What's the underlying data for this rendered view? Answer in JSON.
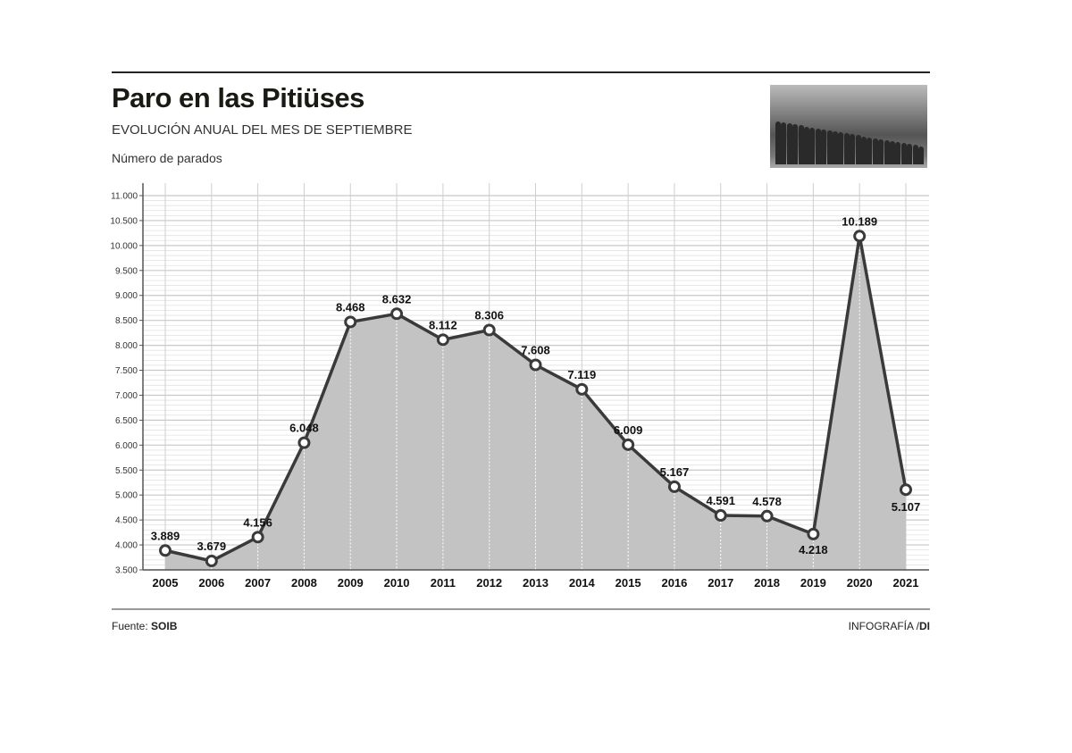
{
  "header": {
    "title": "Paro en las Pitiüses",
    "subtitle": "EVOLUCIÓN ANUAL DEL MES DE SEPTIEMBRE",
    "unit_label": "Número de parados"
  },
  "footer": {
    "source_prefix": "Fuente:",
    "source_name": "SOIB",
    "credit_prefix": "INFOGRAFÍA /",
    "credit_name": "DI"
  },
  "photo": {
    "description_icon": "queue-of-people-photo"
  },
  "chart_data": {
    "type": "area",
    "title": "Paro en las Pitiüses",
    "subtitle": "EVOLUCIÓN ANUAL DEL MES DE SEPTIEMBRE",
    "ylabel": "Número de parados",
    "xlabel": "",
    "categories": [
      "2005",
      "2006",
      "2007",
      "2008",
      "2009",
      "2010",
      "2011",
      "2012",
      "2013",
      "2014",
      "2015",
      "2016",
      "2017",
      "2018",
      "2019",
      "2020",
      "2021"
    ],
    "values": [
      3889,
      3679,
      4156,
      6048,
      8468,
      8632,
      8112,
      8306,
      7608,
      7119,
      6009,
      5167,
      4591,
      4578,
      4218,
      10189,
      5107
    ],
    "data_labels": [
      "3.889",
      "3.679",
      "4.156",
      "6.048",
      "8.468",
      "8.632",
      "8.112",
      "8.306",
      "7.608",
      "7.119",
      "6.009",
      "5.167",
      "4.591",
      "4.578",
      "4.218",
      "10.189",
      "5.107"
    ],
    "ylim": [
      3500,
      11000
    ],
    "yticks": [
      "3.500",
      "4.000",
      "4.500",
      "5.000",
      "5.500",
      "6.000",
      "6.500",
      "7.000",
      "7.500",
      "8.000",
      "8.500",
      "9.000",
      "9.500",
      "10.000",
      "10.500",
      "11.000"
    ],
    "grid": true,
    "colors": {
      "fill": "#c4c3c3",
      "line": "#3a3a3a",
      "grid": "#d2d2d2"
    }
  }
}
